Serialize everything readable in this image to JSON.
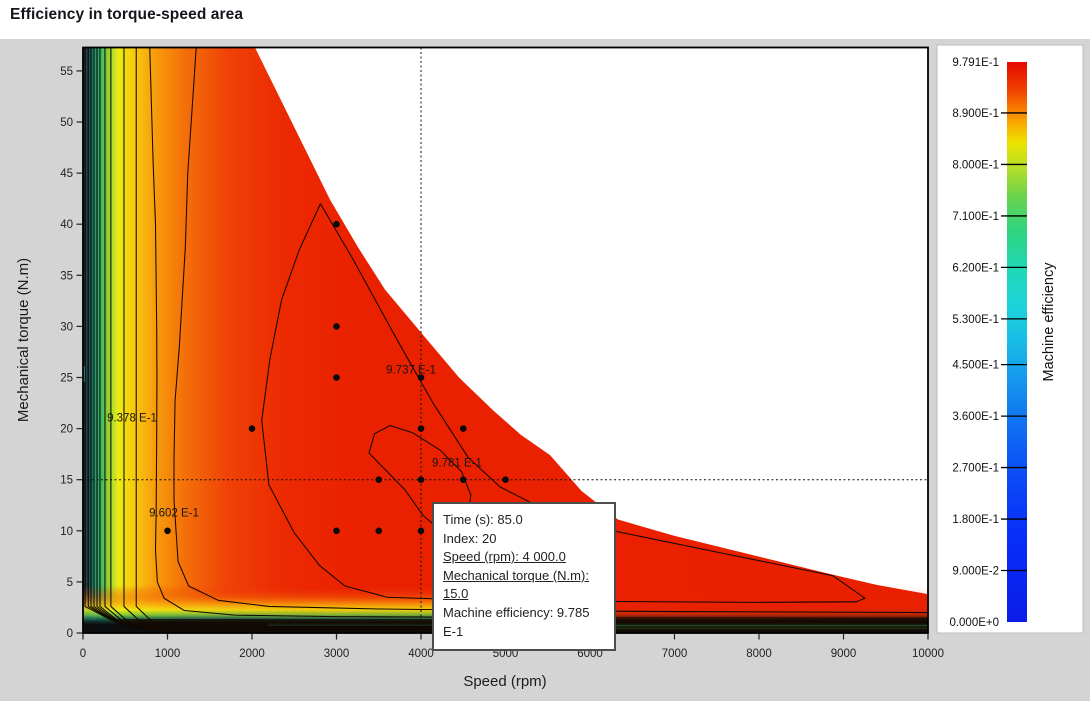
{
  "page": {
    "title": "Efficiency in torque-speed area",
    "background": "#d4d4d4"
  },
  "chart_data": {
    "type": "filled-contour",
    "title": "Efficiency in torque-speed area",
    "xlabel": "Speed (rpm)",
    "ylabel": "Mechanical torque (N.m)",
    "xlim": [
      0,
      10000
    ],
    "ylim": [
      0,
      57.3
    ],
    "grid": false,
    "x_ticks": [
      0,
      1000,
      2000,
      3000,
      4000,
      5000,
      6000,
      7000,
      8000,
      9000,
      10000
    ],
    "y_ticks": [
      0,
      5,
      10,
      15,
      20,
      25,
      30,
      35,
      40,
      45,
      50,
      55
    ],
    "colorbar": {
      "title": "Machine efficiency",
      "min": 0.0,
      "max": 0.9791,
      "ticks": [
        {
          "v": 0.9791,
          "label": "9.791E-1"
        },
        {
          "v": 0.89,
          "label": "8.900E-1"
        },
        {
          "v": 0.8,
          "label": "8.000E-1"
        },
        {
          "v": 0.71,
          "label": "7.100E-1"
        },
        {
          "v": 0.62,
          "label": "6.200E-1"
        },
        {
          "v": 0.53,
          "label": "5.300E-1"
        },
        {
          "v": 0.45,
          "label": "4.500E-1"
        },
        {
          "v": 0.36,
          "label": "3.600E-1"
        },
        {
          "v": 0.27,
          "label": "2.700E-1"
        },
        {
          "v": 0.18,
          "label": "1.800E-1"
        },
        {
          "v": 0.09,
          "label": "9.000E-2"
        },
        {
          "v": 0.0,
          "label": "0.000E+0"
        }
      ],
      "gradient": [
        [
          0,
          "#e40900"
        ],
        [
          0.05,
          "#f04100"
        ],
        [
          0.085,
          "#fa7e00"
        ],
        [
          0.115,
          "#f7b400"
        ],
        [
          0.145,
          "#ece400"
        ],
        [
          0.19,
          "#b4df2a"
        ],
        [
          0.24,
          "#6ad34d"
        ],
        [
          0.3,
          "#30d47e"
        ],
        [
          0.37,
          "#1fd8b6"
        ],
        [
          0.44,
          "#1dd2dc"
        ],
        [
          0.5,
          "#18bce6"
        ],
        [
          0.57,
          "#1596ee"
        ],
        [
          0.65,
          "#106ff3"
        ],
        [
          0.74,
          "#0b4bf6"
        ],
        [
          0.84,
          "#0830f8"
        ],
        [
          1,
          "#0a1ce8"
        ]
      ]
    },
    "fill_gradient": [
      [
        0,
        "#10151d"
      ],
      [
        0.006,
        "#123a42"
      ],
      [
        0.012,
        "#11826c"
      ],
      [
        0.02,
        "#2cb469"
      ],
      [
        0.03,
        "#8fd337"
      ],
      [
        0.042,
        "#ecec11"
      ],
      [
        0.06,
        "#f7cb0e"
      ],
      [
        0.085,
        "#f89d0b"
      ],
      [
        0.12,
        "#f4700a"
      ],
      [
        0.17,
        "#f04306"
      ],
      [
        0.24,
        "#ec2902"
      ],
      [
        0.32,
        "#ea2100"
      ],
      [
        1,
        "#e92000"
      ]
    ],
    "bottom_gradient_left": [
      [
        0,
        "rgba(233,32,0,0)"
      ],
      [
        0.25,
        "rgba(242,100,7,0.5)"
      ],
      [
        0.42,
        "rgba(248,185,12,0.8)"
      ],
      [
        0.52,
        "rgba(238,235,16,0.85)"
      ],
      [
        0.62,
        "rgba(110,200,62,0.85)"
      ],
      [
        0.7,
        "rgba(22,100,80,0.92)"
      ],
      [
        0.76,
        "#132e28"
      ],
      [
        0.82,
        "#0c1012"
      ],
      [
        1,
        "#0a0d0e"
      ]
    ],
    "bottom_gradient_right": [
      [
        0,
        "rgba(233,32,0,0)"
      ],
      [
        0.45,
        "rgba(233,40,0,0.15)"
      ],
      [
        0.6,
        "rgba(180,45,6,0.6)"
      ],
      [
        0.7,
        "rgba(60,22,5,0.9)"
      ],
      [
        0.76,
        "#140f06"
      ],
      [
        1,
        "#0a0d0e"
      ]
    ],
    "envelope": [
      [
        0,
        57.29
      ],
      [
        2035,
        57.29
      ],
      [
        2500,
        49.5
      ],
      [
        2923,
        42.4
      ],
      [
        3250,
        37.8
      ],
      [
        3574,
        33.6
      ],
      [
        4071,
        28.7
      ],
      [
        4450,
        25.0
      ],
      [
        4852,
        21.8
      ],
      [
        5180,
        19.4
      ],
      [
        5527,
        17.4
      ],
      [
        5900,
        13.9
      ],
      [
        6331,
        11.1
      ],
      [
        7000,
        9.5
      ],
      [
        7692,
        8.1
      ],
      [
        8876,
        5.7
      ],
      [
        9400,
        4.7
      ],
      [
        10000,
        3.8
      ],
      [
        10000,
        0
      ],
      [
        0,
        0
      ]
    ],
    "contours": {
      "bundle": [
        {
          "rpm": 24,
          "t_end": 1.3
        },
        {
          "rpm": 63,
          "t_end": 1.17
        },
        {
          "rpm": 95,
          "t_end": 1.04
        },
        {
          "rpm": 130,
          "t_end": 0.91
        },
        {
          "rpm": 166,
          "t_end": 0.78
        },
        {
          "rpm": 201,
          "t_end": 0.65
        },
        {
          "rpm": 260,
          "t_end": 0.52
        },
        {
          "rpm": 330,
          "t_end": 0.4
        },
        {
          "rpm": 485,
          "t_end": 0.3
        },
        {
          "rpm": 630,
          "t_end": 0.22
        }
      ],
      "open_lines": [
        {
          "level": "9.378 E-1",
          "points": [
            [
              790,
              57.29
            ],
            [
              830,
              46
            ],
            [
              858,
              40
            ],
            [
              872,
              30
            ],
            [
              875,
              25
            ],
            [
              872,
              19
            ],
            [
              866,
              12
            ],
            [
              858,
              8.1
            ],
            [
              880,
              5.0
            ],
            [
              960,
              3.4
            ],
            [
              1200,
              2.2
            ],
            [
              1800,
              1.75
            ],
            [
              3000,
              1.6
            ],
            [
              6000,
              1.5
            ],
            [
              10000,
              1.45
            ]
          ]
        },
        {
          "level": "9.602 E-1",
          "points": [
            [
              1340,
              57.29
            ],
            [
              1240,
              45
            ],
            [
              1210,
              37.6
            ],
            [
              1140,
              28
            ],
            [
              1090,
              22.8
            ],
            [
              1077,
              17
            ],
            [
              1077,
              13.0
            ],
            [
              1125,
              7.0
            ],
            [
              1250,
              4.6
            ],
            [
              1600,
              3.2
            ],
            [
              2200,
              2.6
            ],
            [
              3500,
              2.35
            ],
            [
              5000,
              2.2
            ],
            [
              7000,
              2.1
            ],
            [
              10000,
              2.0
            ]
          ]
        }
      ],
      "closed_loops": [
        {
          "level": "9.737 E-1",
          "points": [
            [
              2810,
              42.0
            ],
            [
              3200,
              36.5
            ],
            [
              3716,
              28.7
            ],
            [
              4142,
              22.5
            ],
            [
              4556,
              17.2
            ],
            [
              4935,
              14.3
            ],
            [
              5600,
              11.5
            ],
            [
              6331,
              9.9
            ],
            [
              7692,
              7.6
            ],
            [
              8876,
              5.6
            ],
            [
              9254,
              3.4
            ],
            [
              9150,
              3.05
            ],
            [
              8000,
              3.0
            ],
            [
              6000,
              3.1
            ],
            [
              4500,
              3.25
            ],
            [
              3600,
              3.5
            ],
            [
              3100,
              4.6
            ],
            [
              2800,
              6.6
            ],
            [
              2500,
              9.8
            ],
            [
              2200,
              14.5
            ],
            [
              2115,
              20.8
            ],
            [
              2210,
              26.7
            ],
            [
              2350,
              32.6
            ],
            [
              2560,
              37.5
            ]
          ]
        },
        {
          "level": "9.781 E-1",
          "points": [
            [
              3633,
              20.3
            ],
            [
              3900,
              19.6
            ],
            [
              4225,
              17.9
            ],
            [
              4480,
              15.8
            ],
            [
              4590,
              13.5
            ],
            [
              4550,
              11.0
            ],
            [
              4462,
              8.8
            ],
            [
              4225,
              10.1
            ],
            [
              4024,
              11.5
            ],
            [
              3811,
              14.0
            ],
            [
              3385,
              17.6
            ],
            [
              3450,
              19.5
            ]
          ]
        }
      ],
      "labels": [
        {
          "text": "9.378 E-1",
          "x": 580,
          "y": 21.1
        },
        {
          "text": "9.602 E-1",
          "x": 1077,
          "y": 11.8
        },
        {
          "text": "9.737 E-1",
          "x": 3882,
          "y": 25.8
        },
        {
          "text": "9.781 E-1",
          "x": 4426,
          "y": 16.7
        }
      ]
    },
    "operating_points": [
      [
        1000,
        10
      ],
      [
        2000,
        20
      ],
      [
        3000,
        10
      ],
      [
        3000,
        25
      ],
      [
        3000,
        30
      ],
      [
        3000,
        40
      ],
      [
        3500,
        10
      ],
      [
        3500,
        15
      ],
      [
        4000,
        10
      ],
      [
        4000,
        15
      ],
      [
        4000,
        20
      ],
      [
        4000,
        25
      ],
      [
        4500,
        15
      ],
      [
        4500,
        20
      ],
      [
        5000,
        15
      ]
    ],
    "crosshair": {
      "x": 4000,
      "y": 15
    },
    "tooltip": {
      "lines": [
        {
          "text": "Time (s): 85.0",
          "underline": false
        },
        {
          "text": "Index: 20",
          "underline": false
        },
        {
          "text": "Speed (rpm): 4 000.0",
          "underline": true
        },
        {
          "text": "Mechanical torque (N.m): 15.0",
          "underline": true
        },
        {
          "text": "Machine efficiency: 9.785 E-1",
          "underline": false
        }
      ]
    }
  }
}
